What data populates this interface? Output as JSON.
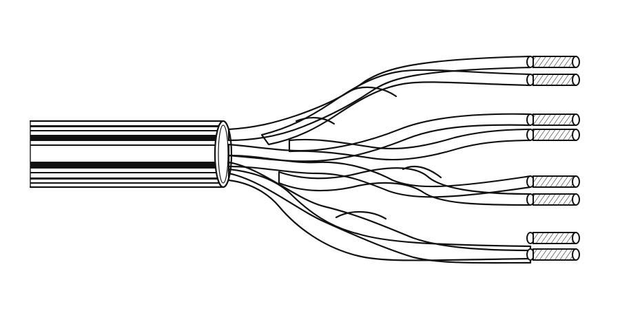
{
  "illustration": {
    "subject": "multi-pair-cable",
    "pair_count": 4,
    "conductor_count": 8,
    "colors": {
      "ink": "#111111",
      "paper": "#ffffff"
    }
  }
}
